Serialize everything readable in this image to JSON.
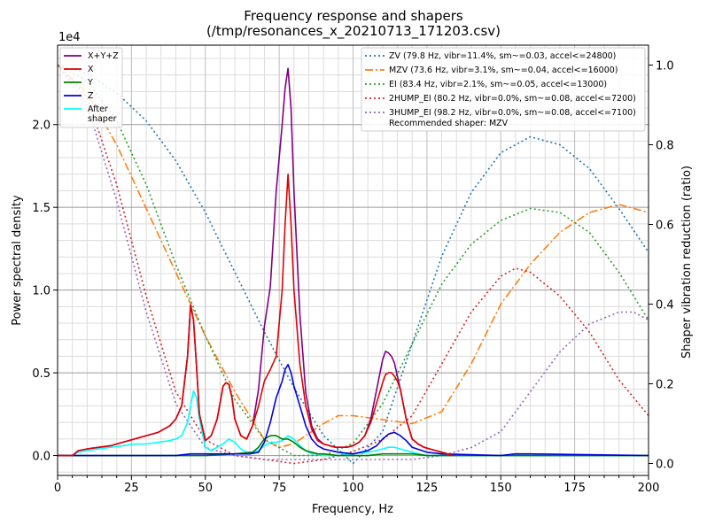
{
  "colors": {
    "xyz": "#800080",
    "x": "#e00000",
    "y": "#008000",
    "z": "#0000e0",
    "after": "#00ffff",
    "zv": "#1f77b4",
    "mzv": "#ff7f0e",
    "ei": "#2ca02c",
    "hump2": "#d62728",
    "hump3": "#9467bd"
  },
  "chart_data": {
    "type": "line",
    "title": "Frequency response and shapers",
    "subtitle": "(/tmp/resonances_x_20210713_171203.csv)",
    "xlabel": "Frequency, Hz",
    "ylabel": "Power spectral density",
    "ylabel_right": "Shaper vibration reduction (ratio)",
    "y_multiplier_label": "1e4",
    "xlim": [
      0,
      200
    ],
    "ylim": [
      -0.12,
      2.48
    ],
    "ylim_right": [
      -0.03,
      1.05
    ],
    "x_ticks": [
      "0",
      "25",
      "50",
      "75",
      "100",
      "125",
      "150",
      "175",
      "200"
    ],
    "y_ticks": [
      "0.0",
      "0.5",
      "1.0",
      "1.5",
      "2.0"
    ],
    "y_ticks_right": [
      "0.0",
      "0.2",
      "0.4",
      "0.6",
      "0.8",
      "1.0"
    ],
    "grid": true,
    "legend_left": {
      "placement": "top-left",
      "entries": [
        {
          "key": "xyz",
          "label": "X+Y+Z"
        },
        {
          "key": "x",
          "label": "X"
        },
        {
          "key": "y",
          "label": "Y"
        },
        {
          "key": "z",
          "label": "Z"
        },
        {
          "key": "after",
          "label": "After shaper"
        }
      ]
    },
    "legend_right": {
      "placement": "top-right",
      "entries": [
        {
          "key": "zv",
          "label": "ZV (79.8 Hz, vibr=11.4%, sm~=0.03, accel<=24800)"
        },
        {
          "key": "mzv",
          "label": "MZV (73.6 Hz, vibr=3.1%, sm~=0.04, accel<=16000)"
        },
        {
          "key": "ei",
          "label": "EI (83.4 Hz, vibr=2.1%, sm~=0.05, accel<=13000)"
        },
        {
          "key": "hump2",
          "label": "2HUMP_EI (80.2 Hz, vibr=0.0%, sm~=0.08, accel<=7200)"
        },
        {
          "key": "hump3",
          "label": "3HUMP_EI (98.2 Hz, vibr=0.0%, sm~=0.08, accel<=7100)"
        }
      ],
      "note": "Recommended shaper: MZV"
    },
    "psd_series": [
      {
        "key": "xyz",
        "name": "X+Y+Z",
        "x": [
          0,
          5,
          7,
          10,
          14,
          18,
          22,
          26,
          30,
          34,
          38,
          40,
          42,
          44,
          45,
          46,
          47,
          48,
          50,
          52,
          54,
          56,
          57,
          58,
          59,
          60,
          62,
          64,
          66,
          68,
          70,
          72,
          74,
          76,
          77,
          78,
          79,
          80,
          82,
          84,
          86,
          88,
          90,
          92,
          94,
          96,
          98,
          100,
          102,
          104,
          106,
          108,
          110,
          111,
          112,
          113,
          114,
          115,
          116,
          118,
          120,
          122,
          124,
          126,
          128,
          130,
          132,
          134
        ],
        "y": [
          0,
          0,
          0.03,
          0.04,
          0.05,
          0.06,
          0.08,
          0.1,
          0.12,
          0.14,
          0.18,
          0.22,
          0.3,
          0.6,
          0.91,
          0.82,
          0.55,
          0.25,
          0.09,
          0.12,
          0.22,
          0.42,
          0.44,
          0.43,
          0.35,
          0.22,
          0.12,
          0.1,
          0.18,
          0.4,
          0.78,
          1.02,
          1.6,
          2.0,
          2.22,
          2.34,
          2.1,
          1.6,
          0.85,
          0.38,
          0.18,
          0.1,
          0.07,
          0.06,
          0.05,
          0.05,
          0.05,
          0.06,
          0.08,
          0.12,
          0.22,
          0.4,
          0.58,
          0.63,
          0.62,
          0.6,
          0.56,
          0.48,
          0.4,
          0.22,
          0.1,
          0.07,
          0.05,
          0.04,
          0.03,
          0.02,
          0.01,
          0
        ]
      },
      {
        "key": "x",
        "name": "X",
        "x": [
          0,
          5,
          7,
          10,
          14,
          18,
          22,
          26,
          30,
          34,
          38,
          40,
          42,
          44,
          45,
          46,
          47,
          48,
          50,
          52,
          54,
          56,
          57,
          58,
          59,
          60,
          62,
          64,
          66,
          68,
          70,
          72,
          74,
          76,
          77,
          78,
          79,
          80,
          82,
          84,
          86,
          88,
          90,
          92,
          94,
          96,
          98,
          100,
          102,
          104,
          106,
          108,
          110,
          111,
          112,
          113,
          114,
          115,
          116,
          118,
          120,
          122,
          124,
          126,
          128,
          130,
          132,
          134
        ],
        "y": [
          0,
          0,
          0.03,
          0.04,
          0.05,
          0.06,
          0.08,
          0.1,
          0.12,
          0.14,
          0.18,
          0.22,
          0.3,
          0.6,
          0.91,
          0.82,
          0.55,
          0.25,
          0.09,
          0.12,
          0.22,
          0.42,
          0.44,
          0.43,
          0.35,
          0.22,
          0.12,
          0.1,
          0.18,
          0.3,
          0.45,
          0.52,
          0.6,
          1.0,
          1.4,
          1.7,
          1.4,
          1.0,
          0.55,
          0.3,
          0.16,
          0.09,
          0.07,
          0.06,
          0.05,
          0.05,
          0.05,
          0.06,
          0.08,
          0.12,
          0.2,
          0.32,
          0.44,
          0.49,
          0.5,
          0.5,
          0.48,
          0.45,
          0.4,
          0.22,
          0.1,
          0.07,
          0.05,
          0.04,
          0.03,
          0.02,
          0.01,
          0
        ]
      },
      {
        "key": "y",
        "name": "Y",
        "x": [
          0,
          40,
          50,
          60,
          66,
          68,
          70,
          72,
          74,
          76,
          78,
          80,
          82,
          84,
          86,
          88,
          90,
          95,
          100,
          105,
          110,
          115,
          120,
          125,
          200
        ],
        "y": [
          0,
          0,
          0,
          0.01,
          0.02,
          0.05,
          0.1,
          0.12,
          0.12,
          0.1,
          0.1,
          0.08,
          0.05,
          0.03,
          0.02,
          0.01,
          0.01,
          0,
          0,
          0,
          0.01,
          0.01,
          0.01,
          0,
          0
        ]
      },
      {
        "key": "z",
        "name": "Z",
        "x": [
          0,
          40,
          45,
          50,
          55,
          60,
          65,
          68,
          70,
          72,
          74,
          76,
          77,
          78,
          79,
          80,
          82,
          84,
          86,
          88,
          90,
          95,
          100,
          105,
          108,
          110,
          112,
          114,
          116,
          118,
          120,
          125,
          130,
          150,
          155,
          160,
          200
        ],
        "y": [
          0,
          0,
          0.01,
          0.01,
          0.01,
          0.01,
          0.01,
          0.02,
          0.08,
          0.2,
          0.35,
          0.45,
          0.52,
          0.55,
          0.5,
          0.42,
          0.3,
          0.18,
          0.1,
          0.06,
          0.04,
          0.02,
          0.01,
          0.03,
          0.06,
          0.1,
          0.13,
          0.14,
          0.12,
          0.09,
          0.05,
          0.02,
          0.01,
          0,
          0.01,
          0.01,
          0
        ]
      },
      {
        "key": "after",
        "name": "After shaper",
        "x": [
          0,
          5,
          7,
          10,
          14,
          18,
          22,
          26,
          30,
          34,
          38,
          40,
          42,
          44,
          45,
          46,
          47,
          48,
          50,
          52,
          54,
          56,
          58,
          60,
          62,
          64,
          66,
          68,
          70,
          72,
          74,
          76,
          78,
          80,
          82,
          84,
          86,
          88,
          90,
          95,
          100,
          105,
          108,
          110,
          112,
          114,
          116,
          118,
          120,
          125,
          200
        ],
        "y": [
          0,
          0,
          0.02,
          0.03,
          0.04,
          0.05,
          0.06,
          0.07,
          0.07,
          0.08,
          0.09,
          0.1,
          0.12,
          0.2,
          0.3,
          0.39,
          0.35,
          0.22,
          0.05,
          0.03,
          0.05,
          0.07,
          0.1,
          0.08,
          0.04,
          0.02,
          0.02,
          0.03,
          0.06,
          0.08,
          0.08,
          0.09,
          0.12,
          0.1,
          0.06,
          0.03,
          0.01,
          0.01,
          0,
          0,
          0.01,
          0.02,
          0.03,
          0.04,
          0.05,
          0.05,
          0.04,
          0.03,
          0.02,
          0,
          0
        ]
      }
    ],
    "shaper_series": [
      {
        "key": "zv",
        "name": "ZV",
        "dash": "2,3",
        "x": [
          0,
          10,
          20,
          30,
          40,
          50,
          60,
          70,
          80,
          90,
          100,
          110,
          120,
          130,
          140,
          150,
          160,
          170,
          180,
          190,
          200
        ],
        "y": [
          1.0,
          0.98,
          0.93,
          0.86,
          0.76,
          0.63,
          0.48,
          0.33,
          0.19,
          0.07,
          0.0,
          0.08,
          0.3,
          0.52,
          0.68,
          0.78,
          0.82,
          0.8,
          0.74,
          0.64,
          0.53
        ]
      },
      {
        "key": "mzv",
        "name": "MZV",
        "dash": "9,3,2,3",
        "x": [
          0,
          10,
          20,
          30,
          40,
          50,
          60,
          70,
          75,
          80,
          90,
          95,
          100,
          110,
          120,
          130,
          140,
          150,
          160,
          170,
          180,
          190,
          200
        ],
        "y": [
          1.0,
          0.93,
          0.8,
          0.64,
          0.48,
          0.32,
          0.18,
          0.06,
          0.04,
          0.05,
          0.1,
          0.12,
          0.12,
          0.11,
          0.1,
          0.13,
          0.25,
          0.4,
          0.5,
          0.58,
          0.63,
          0.65,
          0.63
        ]
      },
      {
        "key": "ei",
        "name": "EI",
        "dash": "2,3",
        "x": [
          0,
          10,
          20,
          30,
          40,
          50,
          60,
          70,
          75,
          80,
          85,
          90,
          100,
          110,
          120,
          130,
          140,
          150,
          160,
          170,
          180,
          190,
          200
        ],
        "y": [
          1.0,
          0.96,
          0.86,
          0.7,
          0.5,
          0.32,
          0.16,
          0.06,
          0.04,
          0.02,
          0.02,
          0.02,
          0.05,
          0.15,
          0.3,
          0.45,
          0.55,
          0.61,
          0.64,
          0.63,
          0.58,
          0.48,
          0.36
        ]
      },
      {
        "key": "hump2",
        "name": "2HUMP_EI",
        "dash": "2,3",
        "x": [
          0,
          10,
          20,
          30,
          40,
          50,
          60,
          70,
          80,
          90,
          100,
          110,
          120,
          130,
          140,
          150,
          155,
          160,
          170,
          180,
          190,
          200
        ],
        "y": [
          1.0,
          0.92,
          0.7,
          0.42,
          0.18,
          0.06,
          0.02,
          0.01,
          0.0,
          0.01,
          0.03,
          0.06,
          0.12,
          0.25,
          0.38,
          0.47,
          0.49,
          0.48,
          0.42,
          0.33,
          0.21,
          0.12
        ]
      },
      {
        "key": "hump3",
        "name": "3HUMP_EI",
        "dash": "2,3",
        "x": [
          0,
          10,
          20,
          30,
          40,
          50,
          60,
          70,
          80,
          90,
          100,
          110,
          120,
          130,
          140,
          150,
          160,
          170,
          180,
          190,
          195,
          200
        ],
        "y": [
          1.0,
          0.9,
          0.66,
          0.38,
          0.15,
          0.04,
          0.02,
          0.01,
          0.01,
          0.01,
          0.01,
          0.01,
          0.01,
          0.02,
          0.04,
          0.08,
          0.18,
          0.28,
          0.35,
          0.38,
          0.38,
          0.36
        ]
      }
    ]
  }
}
